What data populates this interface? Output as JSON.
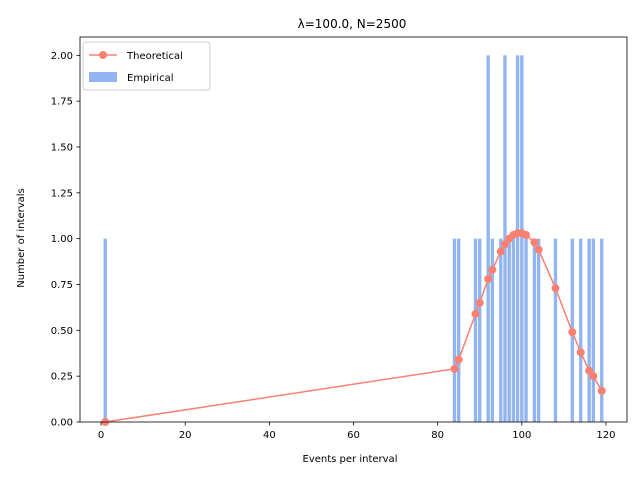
{
  "chart_data": {
    "type": "bar",
    "title": "λ=100.0, N=2500",
    "xlabel": "Events per interval",
    "ylabel": "Number of intervals",
    "xlim": [
      -5,
      125
    ],
    "ylim": [
      0,
      2.1
    ],
    "xticks": [
      0,
      20,
      40,
      60,
      80,
      100,
      120
    ],
    "xtick_labels": [
      "0",
      "20",
      "40",
      "60",
      "80",
      "100",
      "120"
    ],
    "yticks": [
      0,
      0.25,
      0.5,
      0.75,
      1.0,
      1.25,
      1.5,
      1.75,
      2.0
    ],
    "ytick_labels": [
      "0.00",
      "0.25",
      "0.50",
      "0.75",
      "1.00",
      "1.25",
      "1.50",
      "1.75",
      "2.00"
    ],
    "grid": false,
    "legend_position": "top-left",
    "series": [
      {
        "name": "Theoretical",
        "kind": "line",
        "marker": "circle",
        "color": "#fa8072",
        "x": [
          1,
          84,
          85,
          89,
          90,
          92,
          93,
          95,
          96,
          97,
          98,
          99,
          100,
          101,
          103,
          104,
          108,
          112,
          114,
          116,
          117,
          119
        ],
        "y": [
          0.0,
          0.29,
          0.34,
          0.59,
          0.65,
          0.78,
          0.83,
          0.93,
          0.97,
          1.0,
          1.02,
          1.03,
          1.03,
          1.02,
          0.98,
          0.94,
          0.73,
          0.49,
          0.38,
          0.28,
          0.25,
          0.17
        ]
      },
      {
        "name": "Empirical",
        "kind": "bar",
        "color": "#6495ed",
        "x": [
          1,
          84,
          85,
          89,
          90,
          92,
          93,
          95,
          96,
          97,
          98,
          99,
          100,
          101,
          103,
          104,
          108,
          112,
          114,
          116,
          117,
          119
        ],
        "y": [
          1,
          1,
          1,
          1,
          1,
          2,
          1,
          1,
          2,
          1,
          1,
          2,
          2,
          1,
          1,
          1,
          1,
          1,
          1,
          1,
          1,
          1
        ]
      }
    ]
  }
}
